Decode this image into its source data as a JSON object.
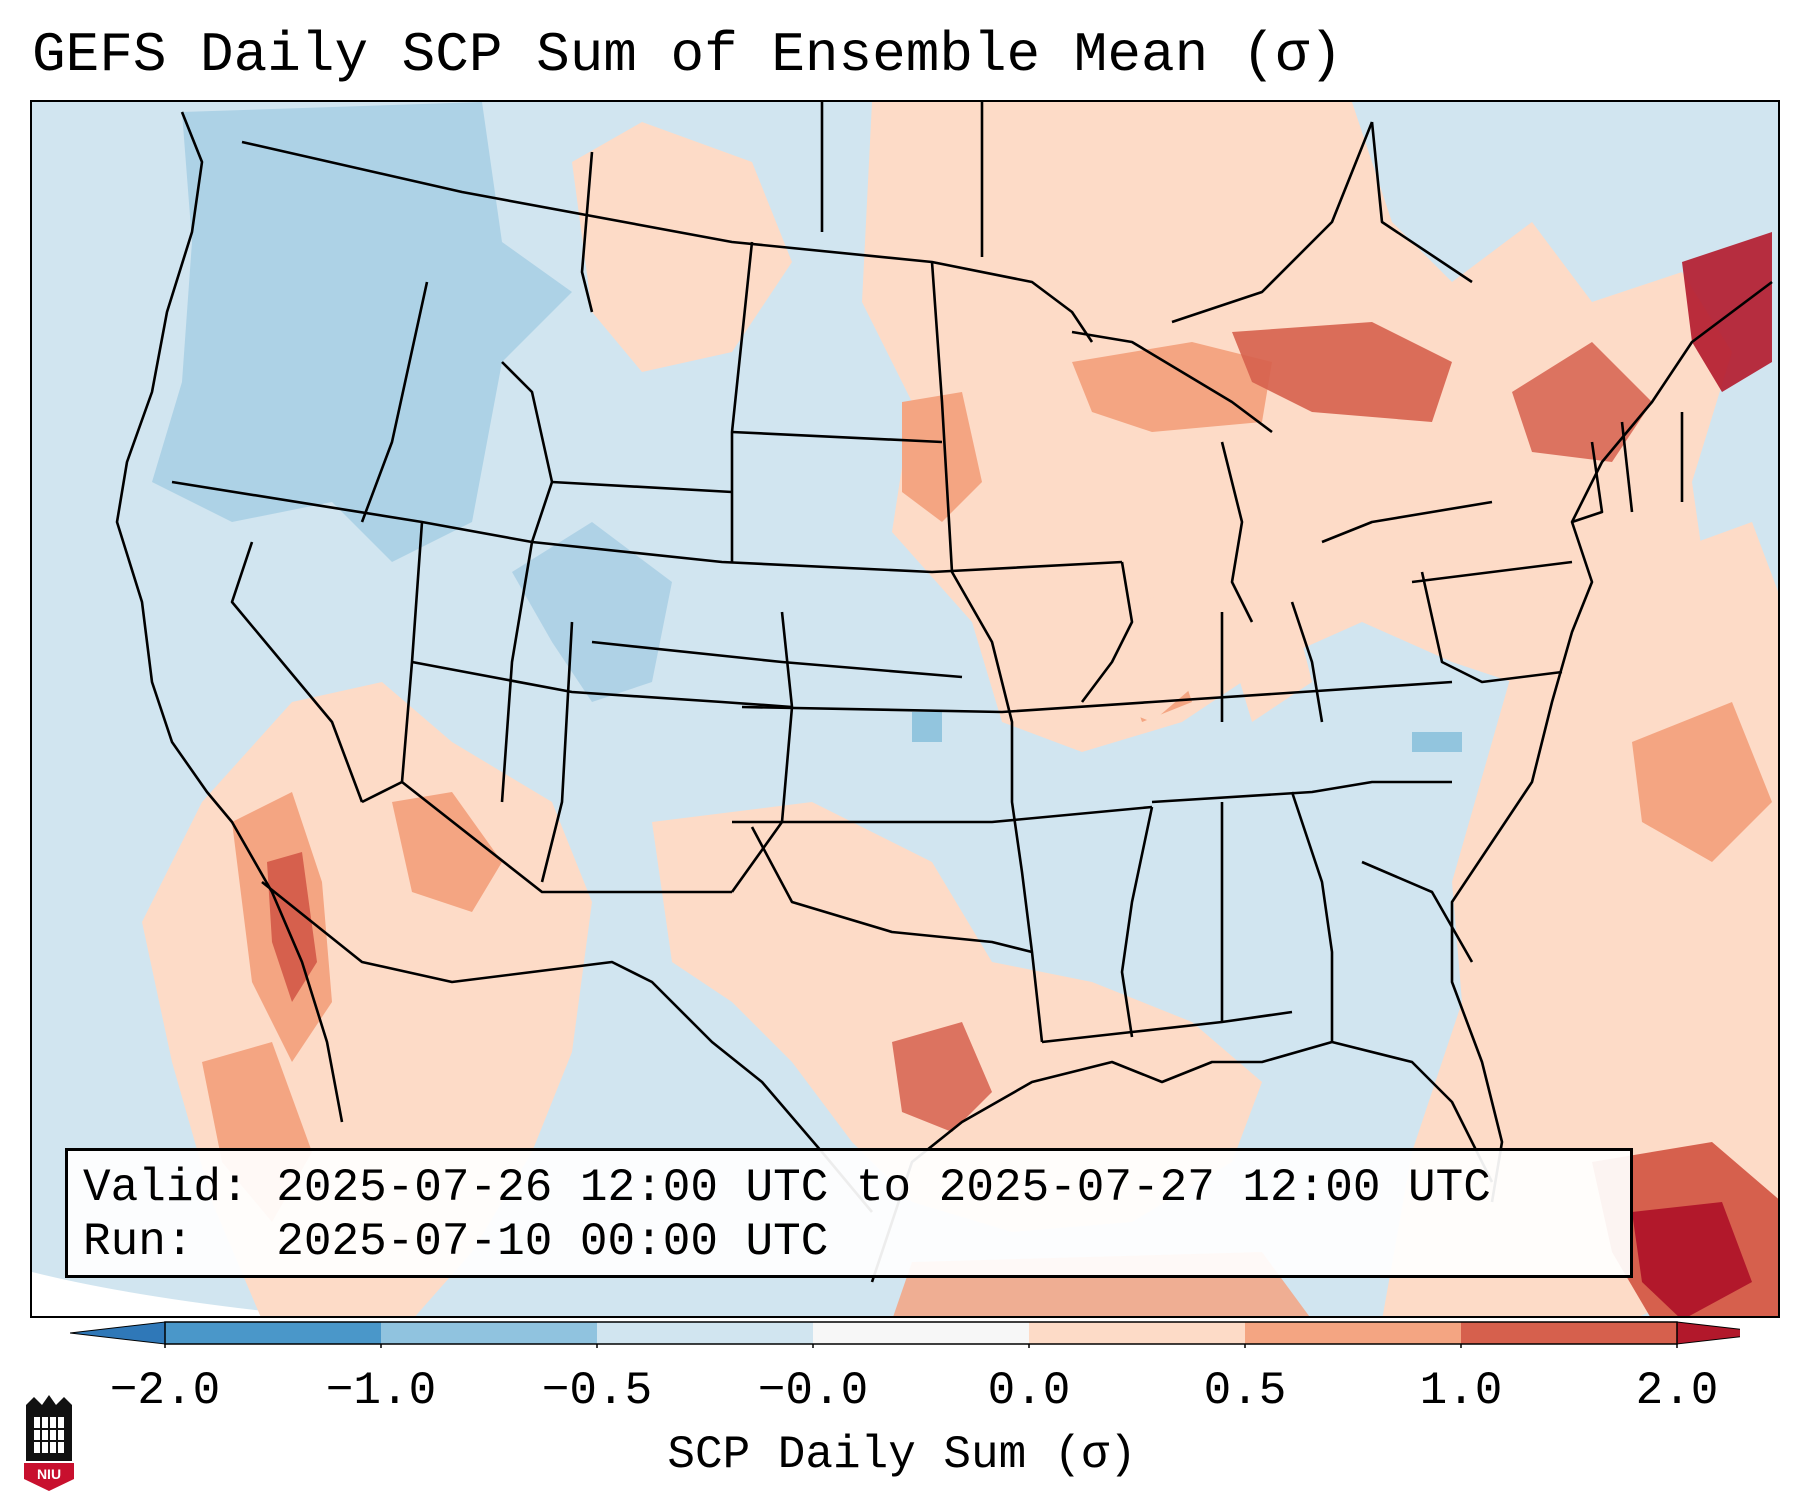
{
  "title": "GEFS Daily SCP Sum of Ensemble Mean (σ)",
  "info": {
    "valid_label": "Valid:",
    "valid_value": "2025-07-26 12:00 UTC to 2025-07-27 12:00 UTC",
    "run_label": "Run:",
    "run_value": "2025-07-10 00:00 UTC"
  },
  "colorbar": {
    "label": "SCP Daily Sum (σ)",
    "ticks": [
      "−2.0",
      "−1.0",
      "−0.5",
      "−0.0",
      "0.0",
      "0.5",
      "1.0",
      "2.0"
    ],
    "bin_colors": [
      "#2f78b8",
      "#4a97c9",
      "#90c3df",
      "#d1e5f0",
      "#f7f7f7",
      "#fddbc7",
      "#f4a582",
      "#d6604d",
      "#b2182b"
    ],
    "extend": "both"
  },
  "map": {
    "projection": "Lambert Conformal (CONUS)",
    "background_color": "#d1e5f0",
    "anomaly_colors": {
      "strong_negative": "#92c5de",
      "weak_positive": "#fddbc7",
      "moderate_positive": "#f4a582",
      "strong_positive": "#d6604d",
      "extreme_positive": "#b2182b"
    }
  },
  "logo": {
    "text": "NIU",
    "icon": "niu-castle-icon"
  }
}
